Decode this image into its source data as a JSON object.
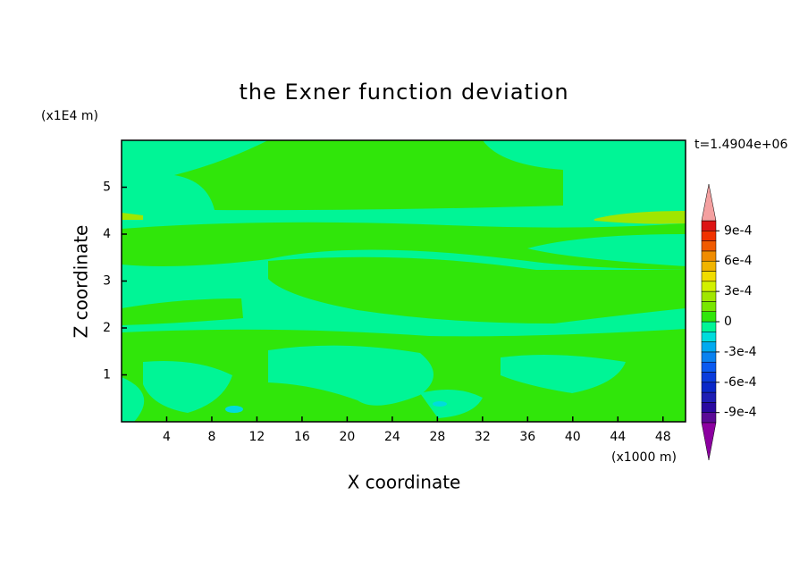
{
  "chart_data": {
    "type": "contour",
    "title": "the Exner function deviation",
    "x_label": "X coordinate",
    "x_unit": "(x1000 m)",
    "y_label": "Z coordinate",
    "y_unit": "(x1E4 m)",
    "time_label": "t=1.4904e+06",
    "xlim": [
      0,
      50
    ],
    "xticks": [
      4,
      8,
      12,
      16,
      20,
      24,
      28,
      32,
      36,
      40,
      44,
      48
    ],
    "ylim": [
      0,
      6
    ],
    "yticks": [
      1,
      2,
      3,
      4,
      5
    ],
    "colorbar": {
      "levels": [
        -0.001,
        -0.0009,
        -0.0008,
        -0.0007,
        -0.0006,
        -0.0005,
        -0.0004,
        -0.0003,
        -0.0002,
        -0.0001,
        0,
        0.0001,
        0.0002,
        0.0003,
        0.0004,
        0.0005,
        0.0006,
        0.0007,
        0.0008,
        0.0009,
        0.001
      ],
      "colors": [
        "#5a0a96",
        "#2a0aa0",
        "#1e1eb4",
        "#0a28c8",
        "#0a3cdc",
        "#0a5af0",
        "#0a82f0",
        "#00aaf0",
        "#00dcdc",
        "#00f596",
        "#30e60a",
        "#78e600",
        "#a0e600",
        "#d2f000",
        "#f0dc00",
        "#f0b400",
        "#f08c00",
        "#f05a00",
        "#f03200",
        "#dc1414"
      ],
      "under_color": "#8c00a0",
      "over_color": "#f4a0a0",
      "ticks": [
        {
          "value": 0.0009,
          "label": "9e-4"
        },
        {
          "value": 0.0006,
          "label": "6e-4"
        },
        {
          "value": 0.0003,
          "label": "3e-4"
        },
        0,
        {
          "value": -0.0003,
          "label": "-3e-4"
        },
        {
          "value": -0.0006,
          "label": "-6e-4"
        },
        {
          "value": -0.0009,
          "label": "-9e-4"
        }
      ]
    }
  }
}
